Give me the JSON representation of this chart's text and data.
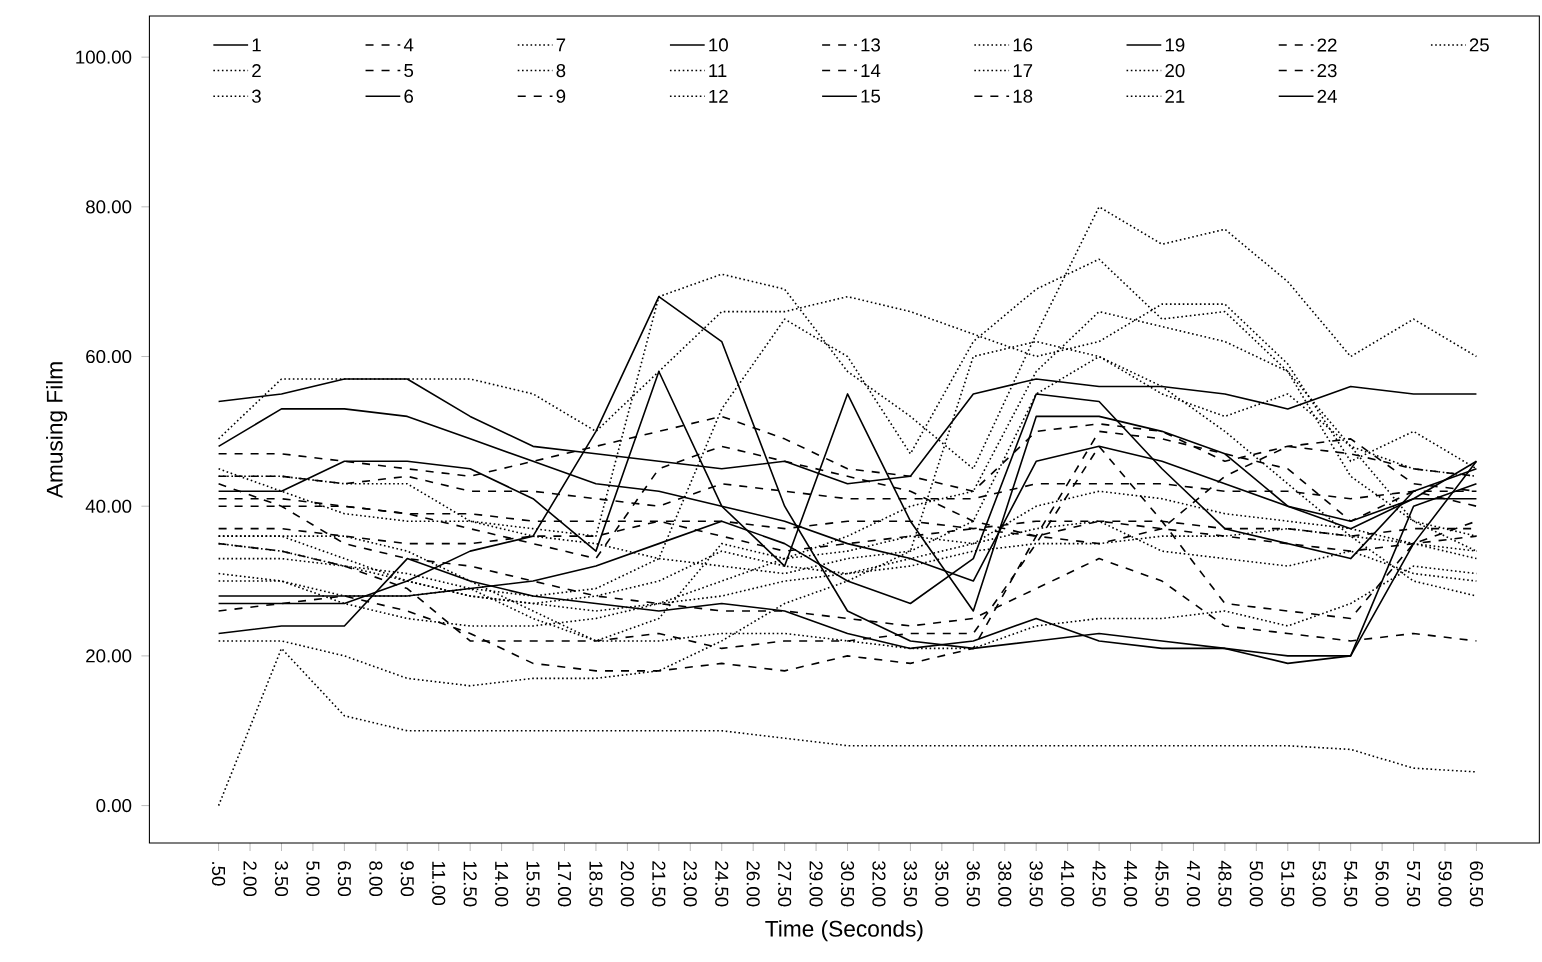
{
  "chart_data": {
    "type": "line",
    "xlabel": "Time (Seconds)",
    "ylabel": "Amusing Film",
    "xlim": [
      -2.8,
      63.5
    ],
    "ylim": [
      -5,
      105.5
    ],
    "xticks": [
      {
        "value": 0.5,
        "label": ".50"
      },
      {
        "value": 2,
        "label": "2.00"
      },
      {
        "value": 3.5,
        "label": "3.50"
      },
      {
        "value": 5,
        "label": "5.00"
      },
      {
        "value": 6.5,
        "label": "6.50"
      },
      {
        "value": 8,
        "label": "8.00"
      },
      {
        "value": 9.5,
        "label": "9.50"
      },
      {
        "value": 11,
        "label": "11.00"
      },
      {
        "value": 12.5,
        "label": "12.50"
      },
      {
        "value": 14,
        "label": "14.00"
      },
      {
        "value": 15.5,
        "label": "15.50"
      },
      {
        "value": 17,
        "label": "17.00"
      },
      {
        "value": 18.5,
        "label": "18.50"
      },
      {
        "value": 20,
        "label": "20.00"
      },
      {
        "value": 21.5,
        "label": "21.50"
      },
      {
        "value": 23,
        "label": "23.00"
      },
      {
        "value": 24.5,
        "label": "24.50"
      },
      {
        "value": 26,
        "label": "26.00"
      },
      {
        "value": 27.5,
        "label": "27.50"
      },
      {
        "value": 29,
        "label": "29.00"
      },
      {
        "value": 30.5,
        "label": "30.50"
      },
      {
        "value": 32,
        "label": "32.00"
      },
      {
        "value": 33.5,
        "label": "33.50"
      },
      {
        "value": 35,
        "label": "35.00"
      },
      {
        "value": 36.5,
        "label": "36.50"
      },
      {
        "value": 38,
        "label": "38.00"
      },
      {
        "value": 39.5,
        "label": "39.50"
      },
      {
        "value": 41,
        "label": "41.00"
      },
      {
        "value": 42.5,
        "label": "42.50"
      },
      {
        "value": 44,
        "label": "44.00"
      },
      {
        "value": 45.5,
        "label": "45.50"
      },
      {
        "value": 47,
        "label": "47.00"
      },
      {
        "value": 48.5,
        "label": "48.50"
      },
      {
        "value": 50,
        "label": "50.00"
      },
      {
        "value": 51.5,
        "label": "51.50"
      },
      {
        "value": 53,
        "label": "53.00"
      },
      {
        "value": 54.5,
        "label": "54.50"
      },
      {
        "value": 56,
        "label": "56.00"
      },
      {
        "value": 57.5,
        "label": "57.50"
      },
      {
        "value": 59,
        "label": "59.00"
      },
      {
        "value": 60.5,
        "label": "60.50"
      }
    ],
    "yticks": [
      {
        "value": 0,
        "label": "0.00"
      },
      {
        "value": 20,
        "label": "20.00"
      },
      {
        "value": 40,
        "label": "40.00"
      },
      {
        "value": 60,
        "label": "60.00"
      },
      {
        "value": 80,
        "label": "80.00"
      },
      {
        "value": 100,
        "label": "100.00"
      }
    ],
    "x": [
      0.5,
      3.5,
      6.5,
      9.5,
      12.5,
      15.5,
      18.5,
      21.5,
      24.5,
      27.5,
      30.5,
      33.5,
      36.5,
      39.5,
      42.5,
      45.5,
      48.5,
      51.5,
      54.5,
      57.5,
      60.5
    ],
    "legend": "top",
    "grid": false,
    "series": [
      {
        "name": "1",
        "color": "#000000",
        "line_style": "solid",
        "values": [
          54,
          55,
          57,
          57,
          52,
          48,
          47,
          46,
          45,
          46,
          43,
          44,
          55,
          57,
          56,
          56,
          55,
          53,
          56,
          55,
          55
        ]
      },
      {
        "name": "2",
        "color": "#000000",
        "line_style": "dotted",
        "values": [
          49,
          57,
          57,
          57,
          57,
          55,
          50,
          58,
          66,
          66,
          68,
          66,
          63,
          60,
          62,
          67,
          67,
          59,
          46,
          50,
          45
        ]
      },
      {
        "name": "3",
        "color": "#000000",
        "line_style": "dotted",
        "values": [
          35,
          34,
          32,
          30,
          28,
          27,
          26,
          27,
          28,
          30,
          31,
          32,
          34,
          35,
          35,
          36,
          36,
          37,
          36,
          35,
          34
        ]
      },
      {
        "name": "4",
        "color": "#000000",
        "line_style": "dashed",
        "values": [
          44,
          44,
          43,
          44,
          42,
          42,
          41,
          40,
          43,
          42,
          41,
          41,
          41,
          43,
          43,
          43,
          42,
          42,
          41,
          42,
          42
        ]
      },
      {
        "name": "5",
        "color": "#000000",
        "line_style": "dashed",
        "values": [
          37,
          37,
          36,
          35,
          35,
          36,
          36,
          38,
          36,
          34,
          35,
          36,
          37,
          36,
          38,
          37,
          36,
          35,
          34,
          35,
          36
        ]
      },
      {
        "name": "6",
        "color": "#000000",
        "line_style": "solid",
        "values": [
          48,
          53,
          53,
          52,
          49,
          46,
          43,
          42,
          40,
          38,
          35,
          33,
          30,
          46,
          48,
          46,
          43,
          40,
          37,
          41,
          46
        ]
      },
      {
        "name": "7",
        "color": "#000000",
        "line_style": "dotted",
        "values": [
          33,
          33,
          32,
          31,
          29,
          25,
          22,
          22,
          23,
          23,
          22,
          21,
          21,
          24,
          25,
          25,
          26,
          24,
          27,
          32,
          31
        ]
      },
      {
        "name": "8",
        "color": "#000000",
        "line_style": "dotted",
        "values": [
          45,
          42,
          39,
          38,
          38,
          36,
          35,
          33,
          32,
          31,
          33,
          34,
          60,
          62,
          60,
          55,
          52,
          55,
          48,
          45,
          44
        ]
      },
      {
        "name": "9",
        "color": "#000000",
        "line_style": "dashed",
        "values": [
          26,
          27,
          28,
          26,
          23,
          19,
          18,
          18,
          19,
          18,
          20,
          19,
          21,
          36,
          50,
          49,
          47,
          45,
          38,
          42,
          40
        ]
      },
      {
        "name": "10",
        "color": "#000000",
        "line_style": "solid",
        "values": [
          42,
          42,
          46,
          46,
          45,
          41,
          34,
          58,
          40,
          32,
          55,
          38,
          26,
          52,
          52,
          50,
          47,
          40,
          38,
          41,
          41
        ]
      },
      {
        "name": "11",
        "color": "#000000",
        "line_style": "dotted",
        "values": [
          36,
          36,
          36,
          34,
          30,
          26,
          22,
          25,
          35,
          33,
          34,
          36,
          35,
          40,
          42,
          41,
          39,
          38,
          37,
          35,
          33
        ]
      },
      {
        "name": "12",
        "color": "#000000",
        "line_style": "dotted",
        "values": [
          31,
          30,
          27,
          25,
          24,
          24,
          25,
          27,
          30,
          33,
          36,
          40,
          42,
          58,
          66,
          64,
          62,
          58,
          44,
          38,
          36
        ]
      },
      {
        "name": "13",
        "color": "#000000",
        "line_style": "dashed",
        "values": [
          41,
          41,
          40,
          39,
          37,
          35,
          33,
          45,
          48,
          46,
          44,
          42,
          38,
          36,
          35,
          37,
          44,
          48,
          47,
          45,
          44
        ]
      },
      {
        "name": "14",
        "color": "#000000",
        "line_style": "dashed",
        "values": [
          43,
          40,
          35,
          33,
          32,
          30,
          28,
          27,
          26,
          26,
          25,
          24,
          25,
          29,
          33,
          30,
          24,
          23,
          22,
          23,
          22
        ]
      },
      {
        "name": "15",
        "color": "#000000",
        "line_style": "solid",
        "values": [
          27,
          27,
          27,
          30,
          34,
          36,
          50,
          68,
          62,
          40,
          26,
          22,
          21,
          22,
          23,
          22,
          21,
          20,
          20,
          35,
          46
        ]
      },
      {
        "name": "16",
        "color": "#000000",
        "line_style": "dotted",
        "values": [
          0,
          21,
          12,
          10,
          10,
          10,
          10,
          10,
          10,
          9,
          8,
          8,
          8,
          8,
          8,
          8,
          8,
          8,
          7.5,
          5,
          4.5
        ]
      },
      {
        "name": "17",
        "color": "#000000",
        "line_style": "dotted",
        "values": [
          22,
          22,
          20,
          17,
          16,
          17,
          17,
          18,
          22,
          27,
          30,
          34,
          38,
          55,
          60,
          56,
          50,
          43,
          36,
          30,
          28
        ]
      },
      {
        "name": "18",
        "color": "#000000",
        "line_style": "dashed",
        "values": [
          35,
          34,
          32,
          29,
          22,
          22,
          22,
          23,
          21,
          22,
          22,
          23,
          23,
          35,
          48,
          38,
          27,
          26,
          25,
          35,
          38
        ]
      },
      {
        "name": "19",
        "color": "#000000",
        "line_style": "solid",
        "values": [
          23,
          24,
          24,
          33,
          30,
          28,
          27,
          26,
          27,
          26,
          23,
          21,
          22,
          25,
          22,
          21,
          21,
          19,
          20,
          40,
          43
        ]
      },
      {
        "name": "20",
        "color": "#000000",
        "line_style": "dotted",
        "values": [
          36,
          36,
          33,
          30,
          28,
          27,
          28,
          30,
          34,
          32,
          31,
          33,
          35,
          37,
          38,
          34,
          33,
          32,
          34,
          31,
          30
        ]
      },
      {
        "name": "21",
        "color": "#000000",
        "line_style": "dotted",
        "values": [
          30,
          30,
          28,
          28,
          29,
          28,
          29,
          33,
          53,
          65,
          60,
          47,
          62,
          69,
          73,
          65,
          66,
          58,
          48,
          38,
          34
        ]
      },
      {
        "name": "22",
        "color": "#000000",
        "line_style": "dashed",
        "values": [
          47,
          47,
          46,
          45,
          44,
          46,
          48,
          50,
          52,
          49,
          45,
          44,
          42,
          50,
          51,
          50,
          46,
          48,
          49,
          43,
          42
        ]
      },
      {
        "name": "23",
        "color": "#000000",
        "line_style": "dashed",
        "values": [
          40,
          40,
          40,
          39,
          39,
          38,
          38,
          38,
          38,
          37,
          38,
          38,
          37,
          38,
          38,
          38,
          37,
          37,
          36,
          37,
          37
        ]
      },
      {
        "name": "24",
        "color": "#000000",
        "line_style": "solid",
        "values": [
          28,
          28,
          28,
          28,
          29,
          30,
          32,
          35,
          38,
          35,
          30,
          27,
          33,
          55,
          54,
          45,
          37,
          35,
          33,
          42,
          45
        ]
      },
      {
        "name": "25",
        "color": "#000000",
        "line_style": "dotted",
        "values": [
          44,
          44,
          43,
          43,
          38,
          37,
          36,
          68,
          71,
          69,
          58,
          52,
          45,
          63,
          80,
          75,
          77,
          70,
          60,
          65,
          60
        ]
      }
    ]
  }
}
